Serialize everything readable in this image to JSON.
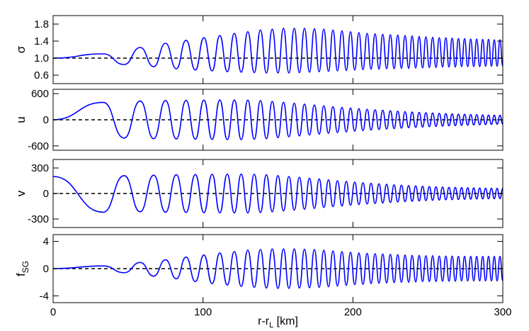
{
  "chart_data": {
    "type": "line",
    "color": "#0000ff",
    "xlim": [
      0,
      300
    ],
    "xticks": [
      0,
      100,
      200,
      300
    ],
    "xlabel": {
      "text": "r-r",
      "sub": "L",
      "rest": " [km]"
    },
    "x": [
      0,
      33.5,
      47.4,
      58.1,
      67.1,
      75.0,
      82.2,
      88.7,
      94.9,
      100.6,
      106.1,
      111.2,
      116.2,
      120.9,
      125.5,
      129.9,
      134.2,
      138.3,
      142.3,
      146.2,
      150.0,
      153.7,
      157.3,
      160.9,
      164.3,
      167.7,
      171.0,
      174.3,
      177.5,
      180.6,
      183.7,
      186.7,
      189.7,
      192.7,
      195.6,
      198.4,
      201.2,
      204.0,
      206.7,
      209.5,
      212.1,
      214.8,
      217.4,
      219.9,
      222.5,
      225.0,
      227.5,
      229.9,
      232.4,
      234.8,
      237.2,
      239.5,
      241.9,
      244.2,
      246.5,
      248.7,
      251.0,
      253.2,
      255.4,
      257.6,
      259.8,
      262.0,
      264.1,
      266.2,
      268.3,
      270.4,
      272.5,
      274.5,
      276.6,
      278.6,
      280.6,
      282.6,
      284.6,
      286.6,
      288.5,
      290.5,
      292.4,
      294.3,
      296.2,
      298.1,
      300.0
    ],
    "panels": [
      {
        "ylabel": {
          "text": "σ"
        },
        "ylim": [
          0.4,
          2.0
        ],
        "yticks": [
          0.6,
          {
            "value": 1,
            "label": "1.0"
          },
          1.4,
          1.8
        ],
        "reference": 1,
        "values": [
          1.0,
          1.1,
          0.85,
          1.25,
          0.8,
          1.35,
          0.75,
          1.42,
          0.72,
          1.48,
          0.7,
          1.53,
          0.68,
          1.58,
          0.67,
          1.62,
          0.66,
          1.66,
          0.65,
          1.68,
          0.65,
          1.7,
          0.65,
          1.7,
          0.66,
          1.7,
          0.67,
          1.69,
          0.68,
          1.68,
          0.69,
          1.66,
          0.7,
          1.64,
          0.71,
          1.62,
          0.72,
          1.6,
          0.73,
          1.58,
          0.74,
          1.57,
          0.74,
          1.56,
          0.75,
          1.55,
          0.75,
          1.54,
          0.76,
          1.53,
          0.76,
          1.52,
          0.77,
          1.51,
          0.77,
          1.5,
          0.78,
          1.49,
          0.78,
          1.48,
          0.79,
          1.48,
          0.79,
          1.47,
          0.79,
          1.46,
          0.8,
          1.46,
          0.8,
          1.45,
          0.8,
          1.45,
          0.8,
          1.44,
          0.81,
          1.44,
          0.81,
          1.43,
          0.81,
          1.43,
          0.81
        ]
      },
      {
        "ylabel": {
          "text": "u"
        },
        "ylim": [
          -700,
          700
        ],
        "yticks": [
          -600,
          0,
          600
        ],
        "reference": 0,
        "values": [
          0,
          400,
          -420,
          430,
          -435,
          440,
          -440,
          445,
          -445,
          450,
          -450,
          455,
          -455,
          455,
          -455,
          450,
          -445,
          440,
          -435,
          420,
          -410,
          400,
          -390,
          380,
          -370,
          360,
          -350,
          340,
          -330,
          320,
          -310,
          300,
          -292,
          285,
          -278,
          270,
          -262,
          255,
          -248,
          242,
          -236,
          230,
          -224,
          218,
          -212,
          207,
          -202,
          197,
          -192,
          187,
          -183,
          178,
          -174,
          170,
          -166,
          162,
          -158,
          155,
          -152,
          148,
          -145,
          142,
          -139,
          136,
          -133,
          130,
          -128,
          125,
          -123,
          120,
          -118,
          116,
          -114,
          112,
          -110,
          108,
          -106,
          104,
          -103,
          102,
          -100
        ]
      },
      {
        "ylabel": {
          "text": "v"
        },
        "ylim": [
          -400,
          400
        ],
        "yticks": [
          -300,
          0,
          300
        ],
        "reference": 0,
        "values": [
          200,
          -220,
          210,
          -215,
          215,
          -220,
          220,
          -222,
          222,
          -225,
          225,
          -227,
          227,
          -228,
          228,
          -228,
          226,
          -224,
          220,
          -215,
          210,
          -205,
          200,
          -195,
          190,
          -185,
          180,
          -175,
          170,
          -165,
          160,
          -155,
          150,
          -146,
          142,
          -138,
          134,
          -130,
          126,
          -123,
          120,
          -117,
          114,
          -111,
          108,
          -105,
          102,
          -99,
          97,
          -95,
          93,
          -91,
          89,
          -87,
          85,
          -83,
          81,
          -80,
          78,
          -77,
          76,
          -74,
          73,
          -72,
          71,
          -70,
          69,
          -68,
          67,
          -66,
          65,
          -64,
          63,
          -63,
          62,
          -62,
          61,
          -61,
          60,
          -60,
          60
        ]
      },
      {
        "ylabel": {
          "text": "f",
          "sub": "SG"
        },
        "ylim": [
          -5,
          5
        ],
        "yticks": [
          -4,
          0,
          4
        ],
        "reference": 0,
        "values": [
          0,
          0.4,
          -0.6,
          0.9,
          -1.1,
          1.3,
          -1.5,
          1.7,
          -1.9,
          2.0,
          -2.2,
          2.3,
          -2.4,
          2.5,
          -2.6,
          2.7,
          -2.75,
          2.8,
          -2.85,
          2.9,
          -2.9,
          2.9,
          -2.9,
          2.9,
          -2.85,
          2.85,
          -2.8,
          2.8,
          -2.75,
          2.7,
          -2.65,
          2.6,
          -2.55,
          2.5,
          -2.45,
          2.4,
          -2.35,
          2.3,
          -2.3,
          2.25,
          -2.2,
          2.2,
          -2.15,
          2.15,
          -2.1,
          2.1,
          -2.05,
          2.05,
          -2.0,
          2.0,
          -2.0,
          1.95,
          -1.95,
          1.95,
          -1.9,
          1.9,
          -1.9,
          1.9,
          -1.9,
          1.85,
          -1.85,
          1.85,
          -1.85,
          1.85,
          -1.85,
          1.8,
          -1.8,
          1.8,
          -1.8,
          1.8,
          -1.8,
          1.8,
          -1.8,
          1.8,
          -1.8,
          1.8,
          -1.8,
          1.8,
          -1.8,
          1.8,
          -1.8
        ]
      }
    ]
  }
}
